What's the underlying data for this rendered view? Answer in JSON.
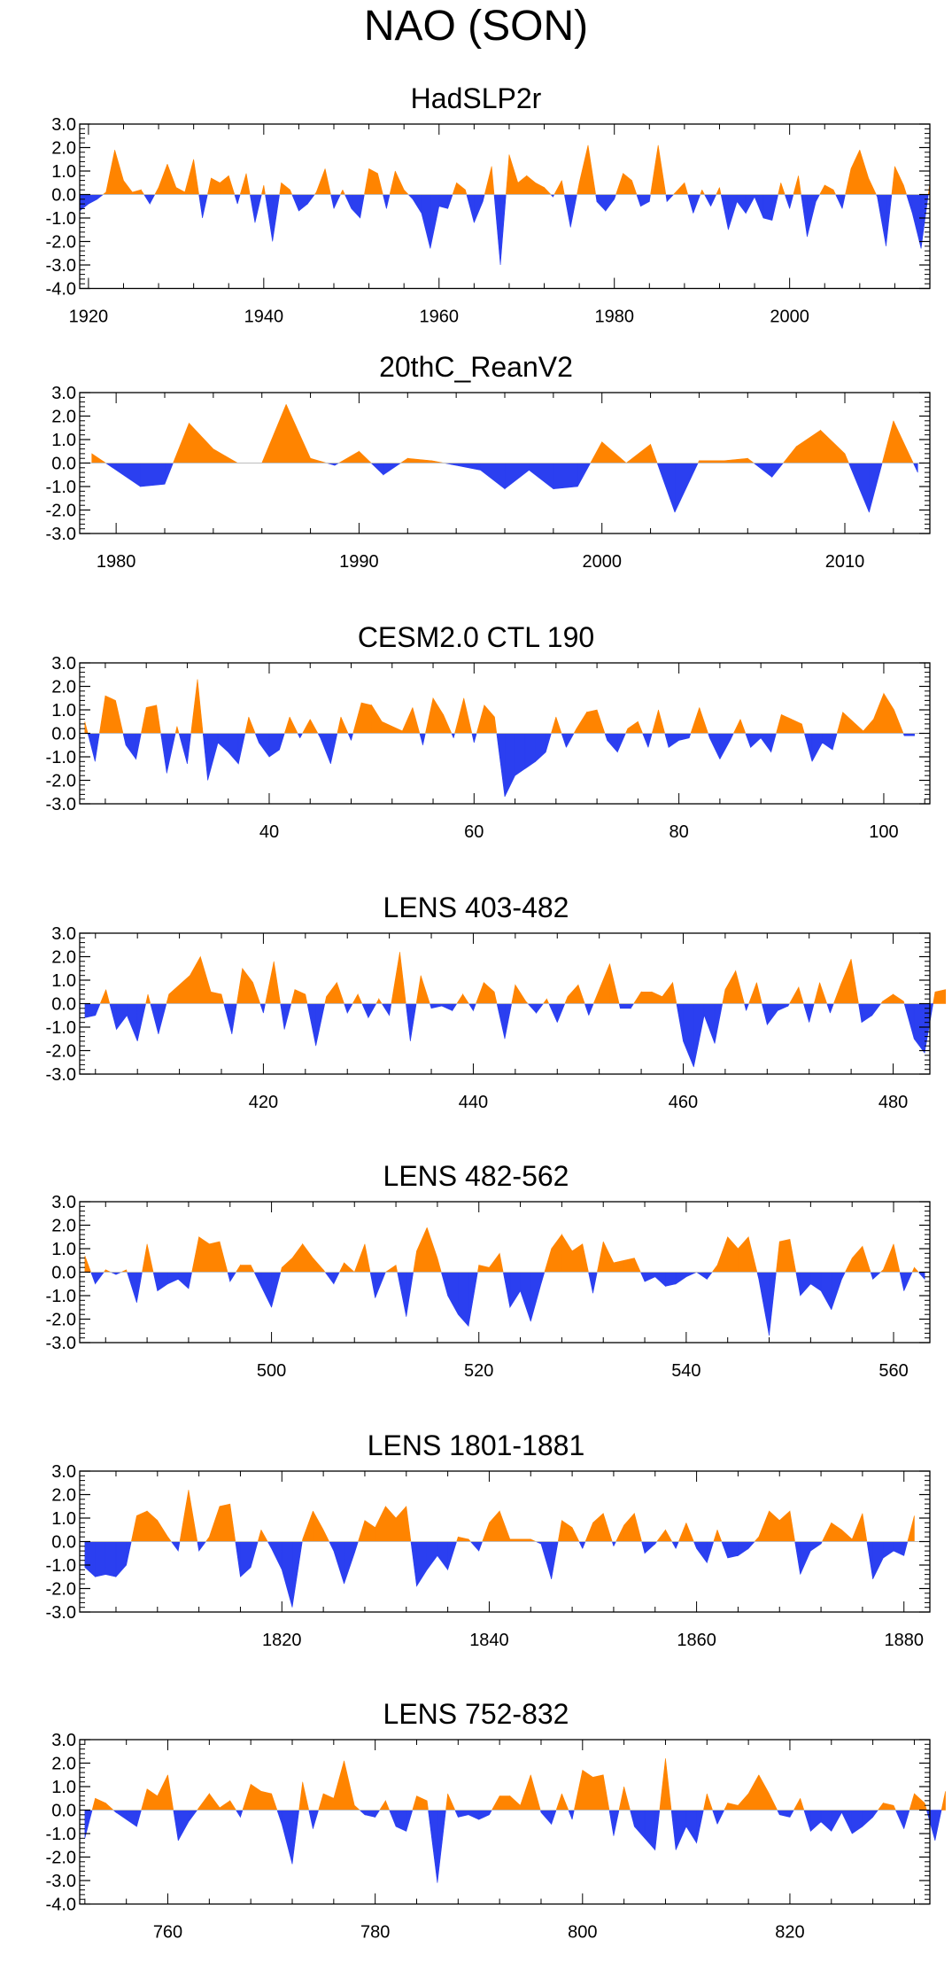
{
  "page": {
    "title": "NAO (SON)"
  },
  "colors": {
    "positive": "#ff8400",
    "negative": "#2b3ff0",
    "frame": "#000000"
  },
  "chart_data": [
    {
      "type": "area",
      "title": "HadSLP2r",
      "xlim": [
        1919,
        2016
      ],
      "ylim": [
        -4.0,
        3.0
      ],
      "yticks": [
        3.0,
        2.0,
        1.0,
        0.0,
        -1.0,
        -2.0,
        -3.0,
        -4.0
      ],
      "ytick_labels": [
        "3.0",
        "2.0",
        "1.0",
        "0.0",
        "-1.0",
        "-2.0",
        "-3.0",
        "-4.0"
      ],
      "xticks": [
        1920,
        1940,
        1960,
        1980,
        2000
      ],
      "xtick_labels": [
        "1920",
        "1940",
        "1960",
        "1980",
        "2000"
      ],
      "x_start": 1919,
      "values": [
        -0.7,
        -0.4,
        -0.2,
        0.1,
        1.9,
        0.6,
        0.1,
        0.2,
        -0.4,
        0.3,
        1.3,
        0.3,
        0.1,
        1.5,
        -1.0,
        0.7,
        0.5,
        0.8,
        -0.4,
        0.9,
        -1.2,
        0.4,
        -2.0,
        0.5,
        0.2,
        -0.7,
        -0.4,
        0.1,
        1.1,
        -0.6,
        0.2,
        -0.6,
        -1.0,
        1.1,
        0.9,
        -0.6,
        1.0,
        0.2,
        -0.2,
        -0.8,
        -2.3,
        -0.5,
        -0.6,
        0.5,
        0.2,
        -1.2,
        -0.3,
        1.2,
        -3.0,
        1.7,
        0.5,
        0.8,
        0.5,
        0.3,
        -0.1,
        0.6,
        -1.4,
        0.5,
        2.1,
        -0.3,
        -0.7,
        -0.2,
        0.9,
        0.6,
        -0.5,
        -0.3,
        2.1,
        -0.3,
        0.1,
        0.5,
        -0.8,
        0.2,
        -0.5,
        0.3,
        -1.5,
        -0.3,
        -0.8,
        -0.1,
        -1.0,
        -1.1,
        0.5,
        -0.6,
        0.8,
        -1.8,
        -0.3,
        0.4,
        0.2,
        -0.6,
        1.1,
        1.9,
        0.7,
        -0.1,
        -2.2,
        1.2,
        0.4,
        -0.8,
        -2.3,
        0.5
      ]
    },
    {
      "type": "area",
      "title": "20thC_ReanV2",
      "xlim": [
        1978.5,
        2013.5
      ],
      "ylim": [
        -3.0,
        3.0
      ],
      "yticks": [
        3.0,
        2.0,
        1.0,
        0.0,
        -1.0,
        -2.0,
        -3.0
      ],
      "ytick_labels": [
        "3.0",
        "2.0",
        "1.0",
        "0.0",
        "-1.0",
        "-2.0",
        "-3.0"
      ],
      "xticks": [
        1980,
        1990,
        2000,
        2010
      ],
      "xtick_labels": [
        "1980",
        "1990",
        "2000",
        "2010"
      ],
      "x_start": 1979,
      "values": [
        0.4,
        -0.3,
        -1.0,
        -0.9,
        1.7,
        0.6,
        0.0,
        0.0,
        2.5,
        0.2,
        -0.1,
        0.5,
        -0.5,
        0.2,
        0.1,
        -0.1,
        -0.3,
        -1.1,
        -0.3,
        -1.1,
        -1.0,
        0.9,
        0.0,
        0.8,
        -2.1,
        0.1,
        0.1,
        0.2,
        -0.6,
        0.7,
        1.4,
        0.4,
        -2.1,
        1.8,
        -0.4
      ]
    },
    {
      "type": "area",
      "title": "CESM2.0 CTL 190",
      "xlim": [
        21.5,
        104.5
      ],
      "ylim": [
        -3.0,
        3.0
      ],
      "yticks": [
        3.0,
        2.0,
        1.0,
        0.0,
        -1.0,
        -2.0,
        -3.0
      ],
      "ytick_labels": [
        "3.0",
        "2.0",
        "1.0",
        "0.0",
        "-1.0",
        "-2.0",
        "-3.0"
      ],
      "xticks": [
        40,
        60,
        80,
        100
      ],
      "xtick_labels": [
        "40",
        "60",
        "80",
        "100"
      ],
      "x_start": 22,
      "values": [
        0.5,
        -1.2,
        1.6,
        1.4,
        -0.5,
        -1.1,
        1.1,
        1.2,
        -1.7,
        0.3,
        -1.3,
        2.3,
        -2.0,
        -0.4,
        -0.8,
        -1.3,
        0.7,
        -0.4,
        -1.0,
        -0.7,
        0.7,
        -0.2,
        0.6,
        -0.2,
        -1.3,
        0.7,
        -0.3,
        1.3,
        1.2,
        0.5,
        0.3,
        0.1,
        1.1,
        -0.5,
        1.5,
        0.8,
        -0.2,
        1.5,
        -0.4,
        1.2,
        0.7,
        -2.7,
        -1.8,
        -1.5,
        -1.2,
        -0.8,
        0.7,
        -0.6,
        0.2,
        0.9,
        1.0,
        -0.3,
        -0.8,
        0.2,
        0.5,
        -0.6,
        1.0,
        -0.6,
        -0.3,
        -0.2,
        1.1,
        -0.2,
        -1.1,
        -0.3,
        0.6,
        -0.6,
        -0.2,
        -0.8,
        0.8,
        0.6,
        0.4,
        -1.2,
        -0.4,
        -0.7,
        0.9,
        0.5,
        0.1,
        0.6,
        1.7,
        1.0,
        -0.1,
        -0.1
      ]
    },
    {
      "type": "area",
      "title": "LENS 403-482",
      "xlim": [
        402.5,
        483.5
      ],
      "ylim": [
        -3.0,
        3.0
      ],
      "yticks": [
        3.0,
        2.0,
        1.0,
        0.0,
        -1.0,
        -2.0,
        -3.0
      ],
      "ytick_labels": [
        "3.0",
        "2.0",
        "1.0",
        "0.0",
        "-1.0",
        "-2.0",
        "-3.0"
      ],
      "xticks": [
        420,
        440,
        460,
        480
      ],
      "xtick_labels": [
        "420",
        "440",
        "460",
        "480"
      ],
      "x_start": 403,
      "values": [
        -0.6,
        -0.5,
        0.6,
        -1.1,
        -0.5,
        -1.6,
        0.4,
        -1.3,
        0.4,
        0.8,
        1.2,
        2.0,
        0.5,
        0.4,
        -1.3,
        1.5,
        0.9,
        -0.4,
        1.8,
        -1.1,
        0.6,
        0.4,
        -1.8,
        0.3,
        0.9,
        -0.4,
        0.4,
        -0.6,
        0.2,
        -0.5,
        2.2,
        -1.6,
        1.2,
        -0.2,
        -0.1,
        -0.3,
        0.4,
        -0.3,
        0.9,
        0.5,
        -1.5,
        0.8,
        0.1,
        -0.4,
        0.2,
        -0.8,
        0.3,
        0.8,
        -0.5,
        0.6,
        1.7,
        -0.2,
        -0.2,
        0.5,
        0.5,
        0.3,
        0.9,
        -1.6,
        -2.7,
        -0.5,
        -1.7,
        0.6,
        1.4,
        -0.3,
        0.9,
        -0.9,
        -0.3,
        -0.1,
        0.7,
        -0.8,
        0.9,
        -0.4,
        0.8,
        1.9,
        -0.8,
        -0.5,
        0.1,
        0.4,
        0.1,
        -1.5,
        -2.1,
        0.5,
        0.6
      ]
    },
    {
      "type": "area",
      "title": "LENS 482-562",
      "xlim": [
        481.5,
        563.5
      ],
      "ylim": [
        -3.0,
        3.0
      ],
      "yticks": [
        3.0,
        2.0,
        1.0,
        0.0,
        -1.0,
        -2.0,
        -3.0
      ],
      "ytick_labels": [
        "3.0",
        "2.0",
        "1.0",
        "0.0",
        "-1.0",
        "-2.0",
        "-3.0"
      ],
      "xticks": [
        500,
        520,
        540,
        560
      ],
      "xtick_labels": [
        "500",
        "520",
        "540",
        "560"
      ],
      "x_start": 482,
      "values": [
        0.7,
        -0.5,
        0.1,
        -0.1,
        0.1,
        -1.3,
        1.2,
        -0.8,
        -0.5,
        -0.3,
        -0.7,
        1.5,
        1.2,
        1.3,
        -0.4,
        0.3,
        0.3,
        -0.6,
        -1.5,
        0.2,
        0.6,
        1.2,
        0.6,
        0.1,
        -0.5,
        0.4,
        0.0,
        1.2,
        -1.1,
        0.0,
        0.3,
        -1.9,
        0.9,
        1.9,
        0.6,
        -1.0,
        -1.8,
        -2.3,
        0.3,
        0.2,
        0.8,
        -1.5,
        -0.8,
        -2.1,
        -0.5,
        1.0,
        1.6,
        0.9,
        1.2,
        -0.9,
        1.3,
        0.4,
        0.5,
        0.6,
        -0.4,
        -0.2,
        -0.6,
        -0.5,
        -0.2,
        0.0,
        -0.3,
        0.3,
        1.5,
        1.0,
        1.5,
        -0.3,
        -2.7,
        1.3,
        1.4,
        -1.0,
        -0.5,
        -0.8,
        -1.6,
        -0.3,
        0.6,
        1.1,
        -0.3,
        0.1,
        1.2,
        -0.8,
        0.2,
        -0.3
      ]
    },
    {
      "type": "area",
      "title": "LENS 1801-1881",
      "xlim": [
        1800.5,
        1882.5
      ],
      "ylim": [
        -3.0,
        3.0
      ],
      "yticks": [
        3.0,
        2.0,
        1.0,
        0.0,
        -1.0,
        -2.0,
        -3.0
      ],
      "ytick_labels": [
        "3.0",
        "2.0",
        "1.0",
        "0.0",
        "-1.0",
        "-2.0",
        "-3.0"
      ],
      "xticks": [
        1820,
        1840,
        1860,
        1880
      ],
      "xtick_labels": [
        "1820",
        "1840",
        "1860",
        "1880"
      ],
      "x_start": 1801,
      "values": [
        -1.1,
        -1.5,
        -1.4,
        -1.5,
        -1.0,
        1.1,
        1.3,
        0.9,
        0.2,
        -0.4,
        2.2,
        -0.4,
        0.2,
        1.5,
        1.6,
        -1.5,
        -1.1,
        0.5,
        -0.3,
        -1.2,
        -2.8,
        0.1,
        1.3,
        0.5,
        -0.4,
        -1.8,
        -0.5,
        0.9,
        0.6,
        1.5,
        1.0,
        1.5,
        -1.9,
        -1.2,
        -0.6,
        -1.2,
        0.2,
        0.1,
        -0.4,
        0.8,
        1.3,
        0.1,
        0.1,
        0.1,
        -0.1,
        -1.6,
        0.9,
        0.6,
        -0.3,
        0.8,
        1.2,
        -0.2,
        0.7,
        1.2,
        -0.5,
        -0.1,
        0.5,
        -0.3,
        0.8,
        -0.3,
        -0.9,
        0.5,
        -0.7,
        -0.6,
        -0.3,
        0.2,
        1.3,
        0.9,
        1.3,
        -1.4,
        -0.4,
        -0.1,
        0.8,
        0.5,
        0.1,
        1.2,
        -1.6,
        -0.7,
        -0.4,
        -0.6,
        1.1
      ]
    },
    {
      "type": "area",
      "title": "LENS 752-832",
      "xlim": [
        751.5,
        833.5
      ],
      "ylim": [
        -4.0,
        3.0
      ],
      "yticks": [
        3.0,
        2.0,
        1.0,
        0.0,
        -1.0,
        -2.0,
        -3.0,
        -4.0
      ],
      "ytick_labels": [
        "3.0",
        "2.0",
        "1.0",
        "0.0",
        "-1.0",
        "-2.0",
        "-3.0",
        "-4.0"
      ],
      "xticks": [
        760,
        780,
        800,
        820
      ],
      "xtick_labels": [
        "760",
        "780",
        "800",
        "820"
      ],
      "x_start": 752,
      "values": [
        -1.2,
        0.5,
        0.3,
        -0.1,
        -0.4,
        -0.7,
        0.9,
        0.6,
        1.5,
        -1.3,
        -0.5,
        0.1,
        0.7,
        0.1,
        0.4,
        -0.3,
        1.1,
        0.8,
        0.7,
        -0.6,
        -2.3,
        1.2,
        -0.8,
        0.7,
        0.5,
        2.1,
        0.2,
        -0.2,
        -0.3,
        0.4,
        -0.7,
        -0.9,
        0.6,
        0.4,
        -3.1,
        0.7,
        -0.3,
        -0.2,
        -0.4,
        -0.2,
        0.6,
        0.6,
        0.2,
        1.5,
        -0.1,
        -0.6,
        0.7,
        -0.4,
        1.7,
        1.4,
        1.5,
        -1.1,
        1.0,
        -0.7,
        -1.2,
        -1.7,
        2.2,
        -1.7,
        -0.7,
        -1.4,
        0.7,
        -0.6,
        0.3,
        0.2,
        0.7,
        1.5,
        0.7,
        -0.2,
        -0.3,
        0.5,
        -0.9,
        -0.5,
        -0.9,
        -0.1,
        -1.0,
        -0.7,
        -0.3,
        0.3,
        0.2,
        -0.8,
        0.7,
        0.3,
        -1.3,
        0.8
      ]
    }
  ]
}
